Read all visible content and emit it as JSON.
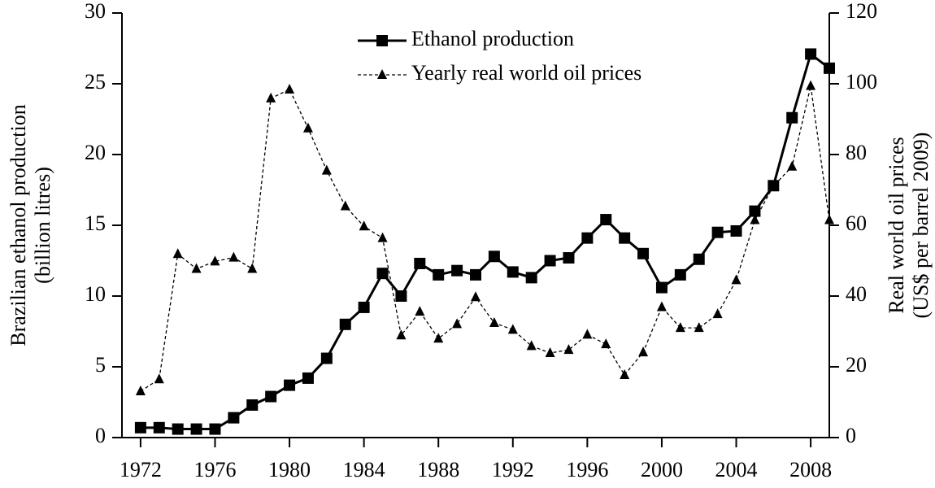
{
  "chart_data": {
    "type": "line",
    "ylabel": [
      "Brazilian ethanol production",
      "(billion litres)"
    ],
    "y2label": [
      "Real world oil prices",
      "(US$ per barrel 2009)"
    ],
    "x": [
      1972,
      1973,
      1974,
      1975,
      1976,
      1977,
      1978,
      1979,
      1980,
      1981,
      1982,
      1983,
      1984,
      1985,
      1986,
      1987,
      1988,
      1989,
      1990,
      1991,
      1992,
      1993,
      1994,
      1995,
      1996,
      1997,
      1998,
      1999,
      2000,
      2001,
      2002,
      2003,
      2004,
      2005,
      2006,
      2007,
      2008,
      2009
    ],
    "series": [
      {
        "name": "Ethanol production",
        "color": "#000000",
        "marker": "square",
        "dash": false,
        "values": [
          0.7,
          0.7,
          0.6,
          0.6,
          0.6,
          1.4,
          2.3,
          2.9,
          3.7,
          4.2,
          5.6,
          8.0,
          9.2,
          11.6,
          10.0,
          12.3,
          11.5,
          11.8,
          11.5,
          12.8,
          11.7,
          11.3,
          12.5,
          12.7,
          14.1,
          15.4,
          14.1,
          13.0,
          10.6,
          11.5,
          12.6,
          14.5,
          14.6,
          16.0,
          17.8,
          22.6,
          27.1,
          26.1
        ]
      },
      {
        "name": "Yearly real world oil prices",
        "color": "#000000",
        "marker": "triangle",
        "dash": true,
        "axis": "y2",
        "values": [
          13.1,
          16.5,
          51.9,
          47.7,
          49.8,
          50.9,
          47.7,
          95.9,
          98.4,
          87.4,
          75.5,
          65.4,
          59.7,
          56.4,
          28.9,
          35.6,
          28.0,
          32.1,
          39.7,
          32.4,
          30.5,
          25.9,
          23.9,
          24.8,
          29.1,
          26.4,
          17.7,
          24.1,
          36.9,
          31.0,
          31.0,
          34.9,
          44.5,
          61.5,
          71.1,
          76.6,
          99.4,
          61.5
        ]
      }
    ],
    "xlim": [
      1971,
      2009
    ],
    "xticks": [
      1972,
      1976,
      1980,
      1984,
      1988,
      1992,
      1996,
      2000,
      2004,
      2008
    ],
    "ylim": [
      0,
      30
    ],
    "yticks": [
      0,
      5,
      10,
      15,
      20,
      25,
      30
    ],
    "y2lim": [
      0,
      120
    ],
    "y2ticks": [
      0,
      20,
      40,
      60,
      80,
      100,
      120
    ],
    "grid": false,
    "legend": "upper center"
  }
}
